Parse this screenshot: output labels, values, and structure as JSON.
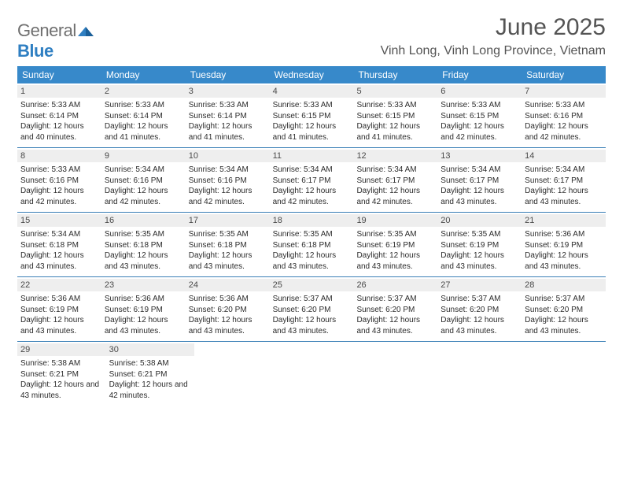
{
  "logo": {
    "general": "General",
    "blue": "Blue"
  },
  "title": "June 2025",
  "location": "Vinh Long, Vinh Long Province, Vietnam",
  "colors": {
    "header_bg": "#3789ca",
    "header_text": "#ffffff",
    "day_header_bg": "#eeeeee",
    "day_header_text": "#4a4a4a",
    "body_text": "#2b2b2b",
    "rule": "#3a7fb6",
    "title_text": "#545454",
    "logo_gray": "#6f6f6f",
    "logo_blue": "#2f7fc2"
  },
  "weekdays": [
    "Sunday",
    "Monday",
    "Tuesday",
    "Wednesday",
    "Thursday",
    "Friday",
    "Saturday"
  ],
  "weeks": [
    [
      {
        "day": "1",
        "sunrise": "Sunrise: 5:33 AM",
        "sunset": "Sunset: 6:14 PM",
        "daylight": "Daylight: 12 hours and 40 minutes."
      },
      {
        "day": "2",
        "sunrise": "Sunrise: 5:33 AM",
        "sunset": "Sunset: 6:14 PM",
        "daylight": "Daylight: 12 hours and 41 minutes."
      },
      {
        "day": "3",
        "sunrise": "Sunrise: 5:33 AM",
        "sunset": "Sunset: 6:14 PM",
        "daylight": "Daylight: 12 hours and 41 minutes."
      },
      {
        "day": "4",
        "sunrise": "Sunrise: 5:33 AM",
        "sunset": "Sunset: 6:15 PM",
        "daylight": "Daylight: 12 hours and 41 minutes."
      },
      {
        "day": "5",
        "sunrise": "Sunrise: 5:33 AM",
        "sunset": "Sunset: 6:15 PM",
        "daylight": "Daylight: 12 hours and 41 minutes."
      },
      {
        "day": "6",
        "sunrise": "Sunrise: 5:33 AM",
        "sunset": "Sunset: 6:15 PM",
        "daylight": "Daylight: 12 hours and 42 minutes."
      },
      {
        "day": "7",
        "sunrise": "Sunrise: 5:33 AM",
        "sunset": "Sunset: 6:16 PM",
        "daylight": "Daylight: 12 hours and 42 minutes."
      }
    ],
    [
      {
        "day": "8",
        "sunrise": "Sunrise: 5:33 AM",
        "sunset": "Sunset: 6:16 PM",
        "daylight": "Daylight: 12 hours and 42 minutes."
      },
      {
        "day": "9",
        "sunrise": "Sunrise: 5:34 AM",
        "sunset": "Sunset: 6:16 PM",
        "daylight": "Daylight: 12 hours and 42 minutes."
      },
      {
        "day": "10",
        "sunrise": "Sunrise: 5:34 AM",
        "sunset": "Sunset: 6:16 PM",
        "daylight": "Daylight: 12 hours and 42 minutes."
      },
      {
        "day": "11",
        "sunrise": "Sunrise: 5:34 AM",
        "sunset": "Sunset: 6:17 PM",
        "daylight": "Daylight: 12 hours and 42 minutes."
      },
      {
        "day": "12",
        "sunrise": "Sunrise: 5:34 AM",
        "sunset": "Sunset: 6:17 PM",
        "daylight": "Daylight: 12 hours and 42 minutes."
      },
      {
        "day": "13",
        "sunrise": "Sunrise: 5:34 AM",
        "sunset": "Sunset: 6:17 PM",
        "daylight": "Daylight: 12 hours and 43 minutes."
      },
      {
        "day": "14",
        "sunrise": "Sunrise: 5:34 AM",
        "sunset": "Sunset: 6:17 PM",
        "daylight": "Daylight: 12 hours and 43 minutes."
      }
    ],
    [
      {
        "day": "15",
        "sunrise": "Sunrise: 5:34 AM",
        "sunset": "Sunset: 6:18 PM",
        "daylight": "Daylight: 12 hours and 43 minutes."
      },
      {
        "day": "16",
        "sunrise": "Sunrise: 5:35 AM",
        "sunset": "Sunset: 6:18 PM",
        "daylight": "Daylight: 12 hours and 43 minutes."
      },
      {
        "day": "17",
        "sunrise": "Sunrise: 5:35 AM",
        "sunset": "Sunset: 6:18 PM",
        "daylight": "Daylight: 12 hours and 43 minutes."
      },
      {
        "day": "18",
        "sunrise": "Sunrise: 5:35 AM",
        "sunset": "Sunset: 6:18 PM",
        "daylight": "Daylight: 12 hours and 43 minutes."
      },
      {
        "day": "19",
        "sunrise": "Sunrise: 5:35 AM",
        "sunset": "Sunset: 6:19 PM",
        "daylight": "Daylight: 12 hours and 43 minutes."
      },
      {
        "day": "20",
        "sunrise": "Sunrise: 5:35 AM",
        "sunset": "Sunset: 6:19 PM",
        "daylight": "Daylight: 12 hours and 43 minutes."
      },
      {
        "day": "21",
        "sunrise": "Sunrise: 5:36 AM",
        "sunset": "Sunset: 6:19 PM",
        "daylight": "Daylight: 12 hours and 43 minutes."
      }
    ],
    [
      {
        "day": "22",
        "sunrise": "Sunrise: 5:36 AM",
        "sunset": "Sunset: 6:19 PM",
        "daylight": "Daylight: 12 hours and 43 minutes."
      },
      {
        "day": "23",
        "sunrise": "Sunrise: 5:36 AM",
        "sunset": "Sunset: 6:19 PM",
        "daylight": "Daylight: 12 hours and 43 minutes."
      },
      {
        "day": "24",
        "sunrise": "Sunrise: 5:36 AM",
        "sunset": "Sunset: 6:20 PM",
        "daylight": "Daylight: 12 hours and 43 minutes."
      },
      {
        "day": "25",
        "sunrise": "Sunrise: 5:37 AM",
        "sunset": "Sunset: 6:20 PM",
        "daylight": "Daylight: 12 hours and 43 minutes."
      },
      {
        "day": "26",
        "sunrise": "Sunrise: 5:37 AM",
        "sunset": "Sunset: 6:20 PM",
        "daylight": "Daylight: 12 hours and 43 minutes."
      },
      {
        "day": "27",
        "sunrise": "Sunrise: 5:37 AM",
        "sunset": "Sunset: 6:20 PM",
        "daylight": "Daylight: 12 hours and 43 minutes."
      },
      {
        "day": "28",
        "sunrise": "Sunrise: 5:37 AM",
        "sunset": "Sunset: 6:20 PM",
        "daylight": "Daylight: 12 hours and 43 minutes."
      }
    ],
    [
      {
        "day": "29",
        "sunrise": "Sunrise: 5:38 AM",
        "sunset": "Sunset: 6:21 PM",
        "daylight": "Daylight: 12 hours and 43 minutes."
      },
      {
        "day": "30",
        "sunrise": "Sunrise: 5:38 AM",
        "sunset": "Sunset: 6:21 PM",
        "daylight": "Daylight: 12 hours and 42 minutes."
      },
      null,
      null,
      null,
      null,
      null
    ]
  ]
}
